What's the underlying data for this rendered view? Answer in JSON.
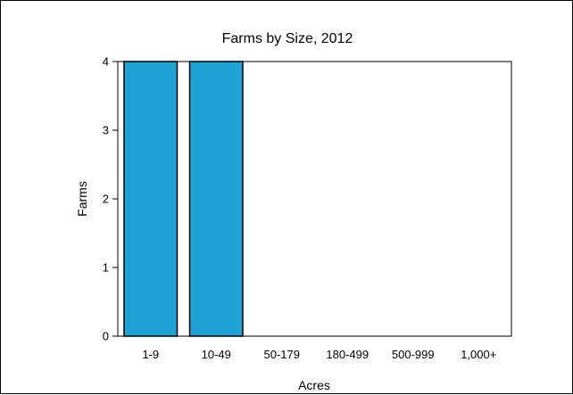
{
  "chart_data": {
    "type": "bar",
    "title": "Farms by Size, 2012",
    "xlabel": "Acres",
    "ylabel": "Farms",
    "categories": [
      "1-9",
      "10-49",
      "50-179",
      "180-499",
      "500-999",
      "1,000+"
    ],
    "values": [
      4,
      4,
      0,
      0,
      0,
      0
    ],
    "ylim": [
      0,
      4
    ],
    "yticks": [
      "0",
      "1",
      "2",
      "3",
      "4"
    ],
    "grid": false,
    "legend": "none",
    "bar_color": "#1fa3d6",
    "bar_edge_color": "#000000"
  }
}
